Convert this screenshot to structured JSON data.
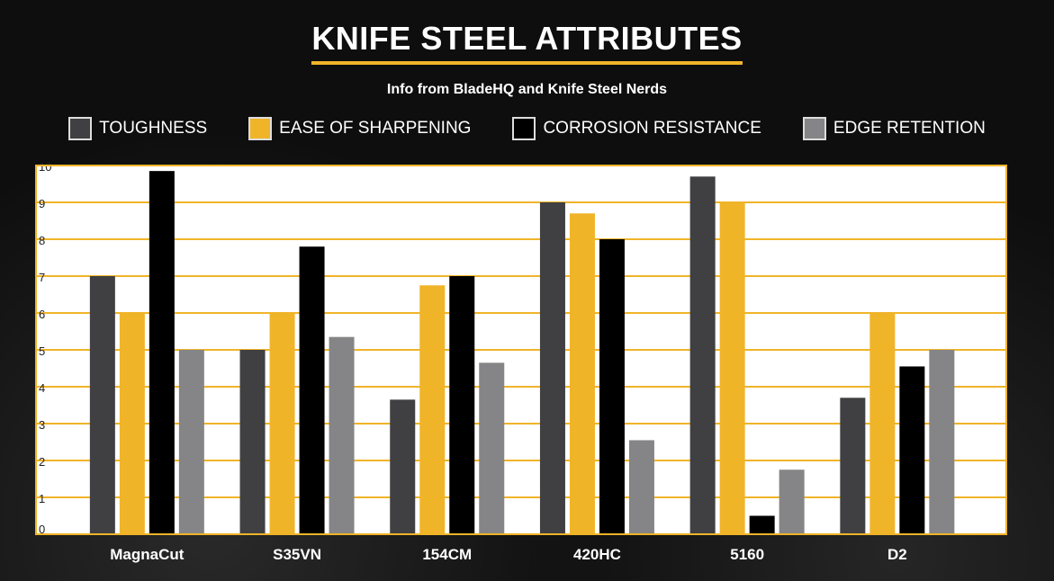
{
  "chart_data": {
    "type": "bar",
    "title": "KNIFE STEEL ATTRIBUTES",
    "subtitle": "Info from BladeHQ and Knife Steel Nerds",
    "categories": [
      "MagnaCut",
      "S35VN",
      "154CM",
      "420HC",
      "5160",
      "D2"
    ],
    "series": [
      {
        "name": "TOUGHNESS",
        "color": "#404042",
        "values": [
          7,
          5,
          3.65,
          9,
          9.7,
          3.7
        ]
      },
      {
        "name": "EASE OF SHARPENING",
        "color": "#f0b429",
        "values": [
          6,
          6,
          6.75,
          8.7,
          9,
          6
        ]
      },
      {
        "name": "CORROSION RESISTANCE",
        "color": "#000000",
        "values": [
          9.85,
          7.8,
          7,
          8,
          0.5,
          4.55
        ]
      },
      {
        "name": "EDGE RETENTION",
        "color": "#858587",
        "values": [
          5,
          5.35,
          4.65,
          2.55,
          1.75,
          5
        ]
      }
    ],
    "yticks": [
      "0",
      "1",
      "2",
      "3",
      "4",
      "5",
      "6",
      "7",
      "8",
      "9",
      "10"
    ],
    "ylim": [
      0,
      10
    ],
    "xlabel": "",
    "ylabel": "",
    "grid": true,
    "legend": "top"
  }
}
